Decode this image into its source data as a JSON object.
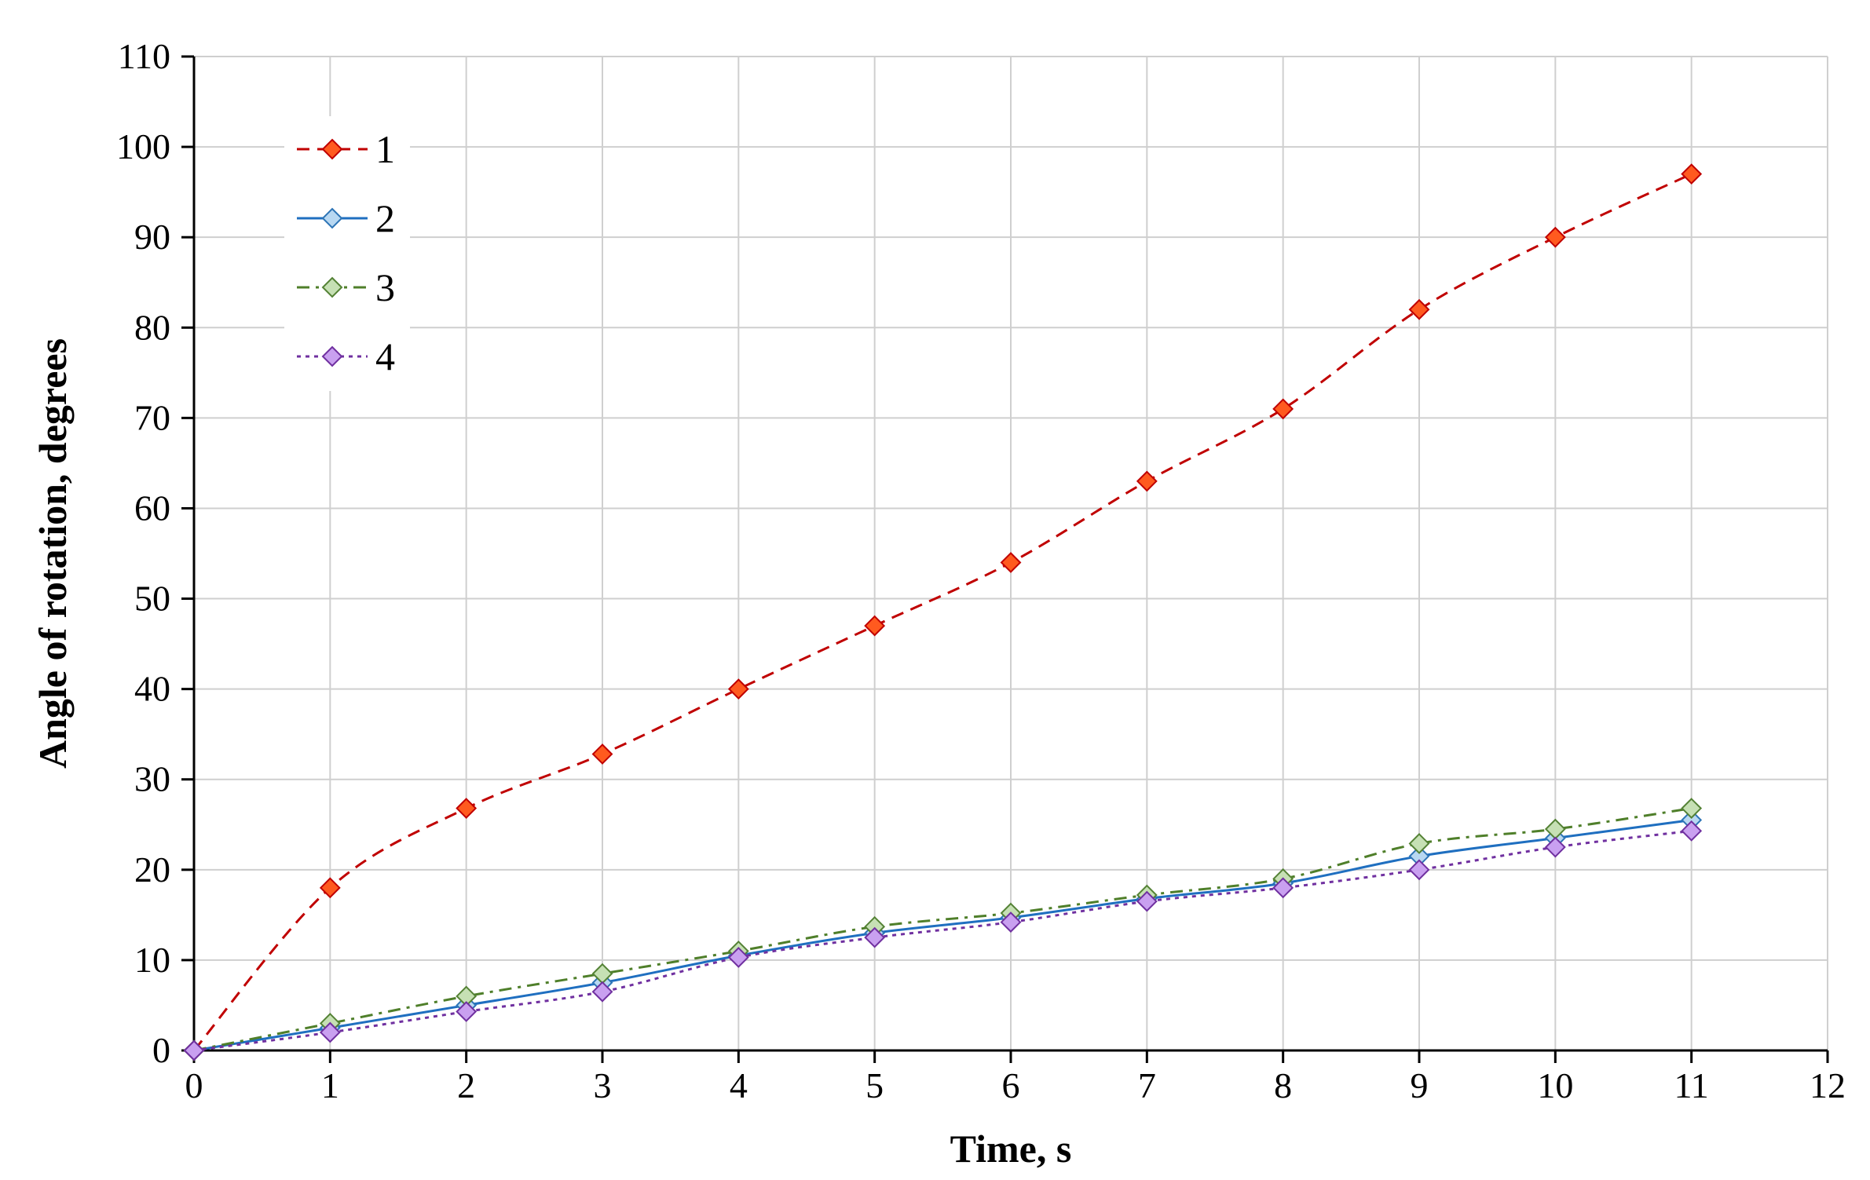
{
  "chart_data": {
    "type": "line",
    "xlabel": "Time, s",
    "ylabel": "Angle of rotation, degrees",
    "xlim": [
      0,
      12
    ],
    "ylim": [
      0,
      110
    ],
    "xticks": [
      0,
      1,
      2,
      3,
      4,
      5,
      6,
      7,
      8,
      9,
      10,
      11,
      12
    ],
    "yticks": [
      0,
      10,
      20,
      30,
      40,
      50,
      60,
      70,
      80,
      90,
      100,
      110
    ],
    "grid": true,
    "legend_position": "top-left",
    "x": [
      0,
      1,
      2,
      3,
      4,
      5,
      6,
      7,
      8,
      9,
      10,
      11
    ],
    "series": [
      {
        "name": "1",
        "values": [
          0,
          18,
          26.8,
          32.8,
          40,
          47,
          54,
          63,
          71,
          82,
          90,
          97
        ],
        "line_color": "#c00000",
        "marker_fill": "#ff5a1f",
        "marker_stroke": "#c00000",
        "dash": "dashed"
      },
      {
        "name": "2",
        "values": [
          0,
          2.5,
          5,
          7.5,
          10.5,
          13,
          14.7,
          16.8,
          18.5,
          21.5,
          23.5,
          25.5
        ],
        "line_color": "#1f6fc0",
        "marker_fill": "#b8d8f2",
        "marker_stroke": "#2e75b6",
        "dash": "solid"
      },
      {
        "name": "3",
        "values": [
          0,
          3,
          6,
          8.5,
          11,
          13.7,
          15.2,
          17.2,
          19,
          22.9,
          24.5,
          26.8
        ],
        "line_color": "#4f7f2a",
        "marker_fill": "#c6e0b4",
        "marker_stroke": "#548235",
        "dash": "dash-dot"
      },
      {
        "name": "4",
        "values": [
          0,
          2,
          4.3,
          6.5,
          10.3,
          12.5,
          14.2,
          16.5,
          18,
          20,
          22.5,
          24.3
        ],
        "line_color": "#7030a0",
        "marker_fill": "#c9a0f0",
        "marker_stroke": "#7030a0",
        "dash": "dotted"
      }
    ]
  }
}
